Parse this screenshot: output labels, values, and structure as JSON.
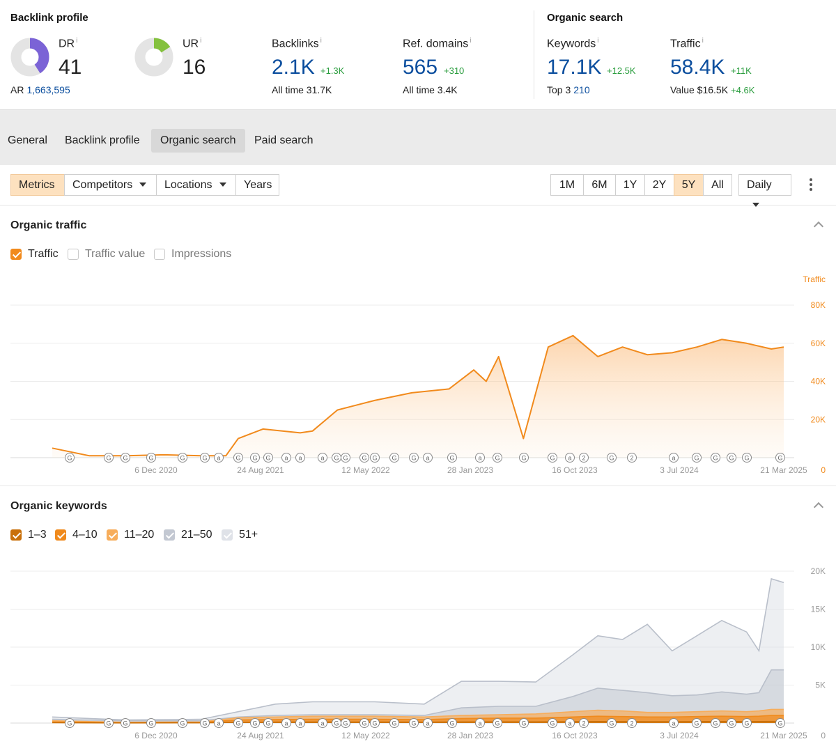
{
  "backlink_profile": {
    "title": "Backlink profile",
    "dr": {
      "label": "DR",
      "info": "i",
      "value": "41",
      "gauge_fraction": 0.41
    },
    "ar": {
      "label": "AR",
      "value": "1,663,595"
    },
    "ur": {
      "label": "UR",
      "info": "i",
      "value": "16",
      "gauge_fraction": 0.16
    },
    "backlinks": {
      "label": "Backlinks",
      "info": "i",
      "value": "2.1K",
      "delta": "+1.3K",
      "sub_label": "All time",
      "sub_value": "31.7K"
    },
    "ref_domains": {
      "label": "Ref. domains",
      "info": "i",
      "value": "565",
      "delta": "+310",
      "sub_label": "All time",
      "sub_value": "3.4K"
    }
  },
  "organic_search": {
    "title": "Organic search",
    "keywords": {
      "label": "Keywords",
      "info": "i",
      "value": "17.1K",
      "delta": "+12.5K",
      "sub_label": "Top 3",
      "sub_value": "210"
    },
    "traffic": {
      "label": "Traffic",
      "info": "i",
      "value": "58.4K",
      "delta": "+11K",
      "sub_label": "Value",
      "sub_value": "$16.5K",
      "sub_delta": "+4.6K"
    }
  },
  "tabs": [
    {
      "label": "General"
    },
    {
      "label": "Backlink profile"
    },
    {
      "label": "Organic search",
      "active": true
    },
    {
      "label": "Paid search"
    }
  ],
  "toolbar": {
    "left": [
      {
        "label": "Metrics",
        "active": true
      },
      {
        "label": "Competitors",
        "dropdown": true
      },
      {
        "label": "Locations",
        "dropdown": true
      },
      {
        "label": "Years"
      }
    ],
    "ranges": [
      {
        "label": "1M"
      },
      {
        "label": "6M"
      },
      {
        "label": "1Y"
      },
      {
        "label": "2Y"
      },
      {
        "label": "5Y",
        "active": true
      },
      {
        "label": "All"
      }
    ],
    "interval": {
      "label": "Daily"
    }
  },
  "organic_traffic": {
    "title": "Organic traffic",
    "checkboxes": [
      {
        "label": "Traffic",
        "checked": true
      },
      {
        "label": "Traffic value",
        "checked": false
      },
      {
        "label": "Impressions",
        "checked": false
      }
    ]
  },
  "organic_keywords": {
    "title": "Organic keywords",
    "checkboxes": [
      {
        "label": "1–3",
        "checked": true,
        "color": "#c9700a"
      },
      {
        "label": "4–10",
        "checked": true,
        "color": "#f08a1c"
      },
      {
        "label": "11–20",
        "checked": true,
        "color": "#f7ad5b"
      },
      {
        "label": "21–50",
        "checked": true,
        "color": "#c3c8d2"
      },
      {
        "label": "51+",
        "checked": true,
        "color": "#dfe2e8"
      }
    ]
  },
  "colors": {
    "accent": "#f18a1c",
    "blue": "#0b4e9e",
    "green": "#2a9d3e",
    "dr_gauge": "#7b63d6",
    "ur_gauge": "#84c13e"
  },
  "chart_data": [
    {
      "type": "area",
      "title": "Organic traffic",
      "series": [
        {
          "name": "Traffic",
          "color": "#f18a1c"
        }
      ],
      "ylabel": "Traffic",
      "ylim": [
        0,
        80000
      ],
      "y_ticks": [
        "0",
        "20K",
        "40K",
        "60K",
        "80K"
      ],
      "x_tick_labels": [
        "6 Dec 2020",
        "24 Aug 2021",
        "12 May 2022",
        "28 Jan 2023",
        "16 Oct 2023",
        "3 Jul 2024",
        "21 Mar 2025"
      ],
      "x": [
        "2020-04",
        "2020-07",
        "2020-10",
        "2021-01",
        "2021-04",
        "2021-06",
        "2021-07",
        "2021-09",
        "2021-12",
        "2022-01",
        "2022-03",
        "2022-06",
        "2022-09",
        "2022-12",
        "2023-02",
        "2023-03",
        "2023-04",
        "2023-06",
        "2023-08",
        "2023-10",
        "2023-12",
        "2024-02",
        "2024-04",
        "2024-06",
        "2024-08",
        "2024-10",
        "2024-12",
        "2025-02",
        "2025-03"
      ],
      "y": [
        5000,
        1000,
        1000,
        1500,
        1000,
        1000,
        10000,
        15000,
        13000,
        14000,
        25000,
        30000,
        34000,
        36000,
        46000,
        40000,
        53000,
        10000,
        58000,
        64000,
        53000,
        58000,
        54000,
        55000,
        58000,
        62000,
        60000,
        57000,
        58000
      ],
      "markers": [
        "G",
        "G",
        "G",
        "GG",
        "G",
        "G",
        "a",
        "G",
        "G",
        "G",
        "a",
        "a",
        "a",
        "G",
        "G",
        "G",
        "G",
        "G",
        "G",
        "a",
        "G",
        "a",
        "G",
        "G",
        "G",
        "a",
        "2",
        "G",
        "2",
        "a",
        "G",
        "G",
        "G"
      ]
    },
    {
      "type": "area",
      "title": "Organic keywords",
      "ylim": [
        0,
        20000
      ],
      "y_ticks": [
        "0",
        "5K",
        "10K",
        "15K",
        "20K"
      ],
      "x_tick_labels": [
        "6 Dec 2020",
        "24 Aug 2021",
        "12 May 2022",
        "28 Jan 2023",
        "16 Oct 2023",
        "3 Jul 2024",
        "21 Mar 2025"
      ],
      "x": [
        "2020-04",
        "2020-10",
        "2021-04",
        "2021-07",
        "2021-10",
        "2022-01",
        "2022-06",
        "2022-10",
        "2023-01",
        "2023-04",
        "2023-07",
        "2023-10",
        "2023-12",
        "2024-02",
        "2024-04",
        "2024-06",
        "2024-08",
        "2024-10",
        "2024-12",
        "2025-01",
        "2025-02",
        "2025-03"
      ],
      "series": [
        {
          "name": "51+",
          "color": "#dfe2e8",
          "values": [
            800,
            400,
            500,
            1500,
            2500,
            2800,
            2800,
            2500,
            5500,
            5500,
            5400,
            9000,
            11500,
            11000,
            13000,
            9500,
            11500,
            13500,
            12000,
            9500,
            19000,
            18500
          ]
        },
        {
          "name": "21–50",
          "color": "#c3c8d2",
          "values": [
            500,
            300,
            300,
            800,
            1000,
            1100,
            1100,
            1000,
            2000,
            2200,
            2200,
            3500,
            4600,
            4300,
            4000,
            3600,
            3700,
            4100,
            3800,
            4000,
            7000,
            7000
          ]
        },
        {
          "name": "11–20",
          "color": "#f7ad5b",
          "values": [
            300,
            100,
            150,
            700,
            800,
            900,
            900,
            800,
            1000,
            1100,
            1200,
            1500,
            1700,
            1600,
            1400,
            1400,
            1500,
            1600,
            1500,
            1600,
            1800,
            1800
          ]
        },
        {
          "name": "4–10",
          "color": "#f08a1c",
          "values": [
            150,
            50,
            80,
            400,
            450,
            500,
            500,
            450,
            600,
            650,
            650,
            800,
            900,
            850,
            800,
            800,
            850,
            900,
            850,
            900,
            1000,
            1000
          ]
        },
        {
          "name": "1–3",
          "color": "#c9700a",
          "values": [
            50,
            20,
            30,
            100,
            120,
            130,
            130,
            120,
            150,
            160,
            160,
            180,
            200,
            190,
            180,
            180,
            190,
            200,
            190,
            200,
            210,
            210
          ]
        }
      ]
    }
  ]
}
